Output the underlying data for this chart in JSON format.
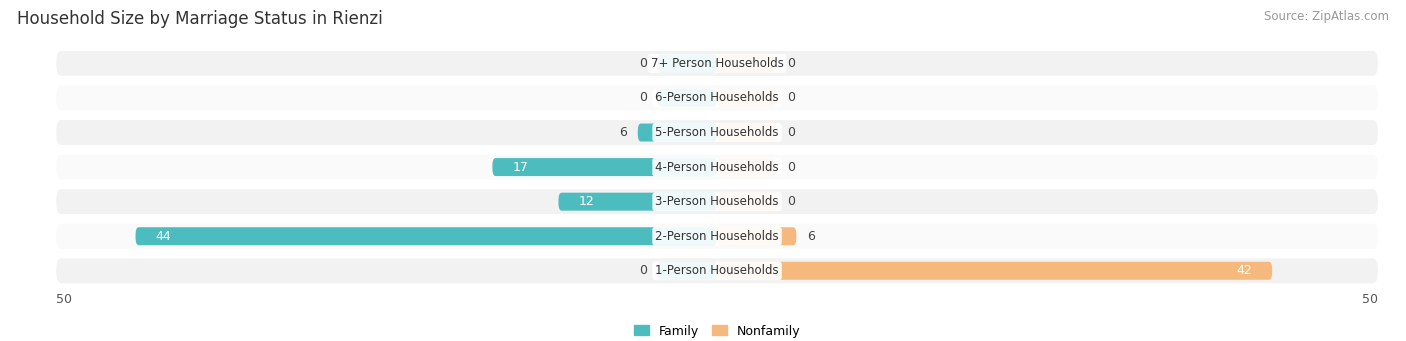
{
  "title": "Household Size by Marriage Status in Rienzi",
  "source": "Source: ZipAtlas.com",
  "categories": [
    "7+ Person Households",
    "6-Person Households",
    "5-Person Households",
    "4-Person Households",
    "3-Person Households",
    "2-Person Households",
    "1-Person Households"
  ],
  "family": [
    0,
    0,
    6,
    17,
    12,
    44,
    0
  ],
  "nonfamily": [
    0,
    0,
    0,
    0,
    0,
    6,
    42
  ],
  "family_color": "#4CBCBF",
  "nonfamily_color": "#F5B97E",
  "row_bg_even": "#F2F2F2",
  "row_bg_odd": "#FAFAFA",
  "xlim": 50,
  "legend_family": "Family",
  "legend_nonfamily": "Nonfamily",
  "title_fontsize": 12,
  "source_fontsize": 8.5,
  "label_fontsize": 9,
  "category_fontsize": 8.5,
  "bar_height": 0.52,
  "stub_size": 4.5
}
